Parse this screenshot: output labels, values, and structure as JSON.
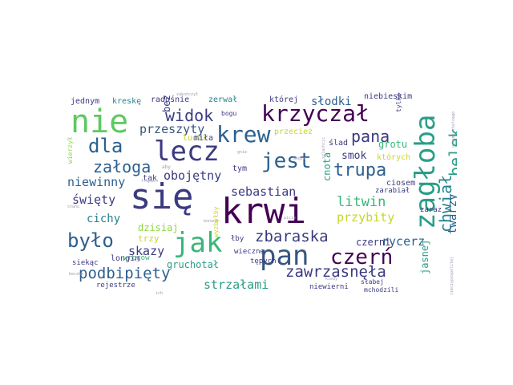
{
  "palette": {
    "dark_purple": "#440154",
    "indigo": "#3b3a81",
    "blue": "#2d5f8e",
    "slate": "#35567f",
    "teal": "#25838e",
    "sea_green": "#2a9e88",
    "green": "#38b77a",
    "light_green": "#5ec962",
    "lime": "#8fd744",
    "yellow": "#c8d62a",
    "gray": "#9c9cb3"
  },
  "words": [
    {
      "text": "się",
      "size": 44,
      "color": "#3b3a81"
    },
    {
      "text": "krwi",
      "size": 44,
      "color": "#440154"
    },
    {
      "text": "nie",
      "size": 40,
      "color": "#5ec962"
    },
    {
      "text": "lecz",
      "size": 34,
      "color": "#3b3a81"
    },
    {
      "text": "jak",
      "size": 34,
      "color": "#38b77a"
    },
    {
      "text": "zagłoba",
      "size": 34,
      "color": "#2a9e88"
    },
    {
      "text": "pan",
      "size": 34,
      "color": "#35567f"
    },
    {
      "text": "krzyczał",
      "size": 28,
      "color": "#440154"
    },
    {
      "text": "krew",
      "size": 28,
      "color": "#2d5f8e"
    },
    {
      "text": "czerń",
      "size": 26,
      "color": "#440154"
    },
    {
      "text": "jest",
      "size": 26,
      "color": "#2d5f8e"
    },
    {
      "text": "dla",
      "size": 24,
      "color": "#2d5f8e"
    },
    {
      "text": "było",
      "size": 24,
      "color": "#2d5f8e"
    },
    {
      "text": "trupa",
      "size": 22,
      "color": "#2d5f8e"
    },
    {
      "text": "pana",
      "size": 20,
      "color": "#3b3a81"
    },
    {
      "text": "widok",
      "size": 20,
      "color": "#3b3a81"
    },
    {
      "text": "załoga",
      "size": 20,
      "color": "#2d5f8e"
    },
    {
      "text": "chwiał",
      "size": 20,
      "color": "#25838e"
    },
    {
      "text": "belek",
      "size": 20,
      "color": "#2a9e88"
    },
    {
      "text": "zbaraska",
      "size": 19,
      "color": "#3b3a81"
    },
    {
      "text": "zawrzasnęła",
      "size": 19,
      "color": "#3b3a81"
    },
    {
      "text": "podbipięty",
      "size": 19,
      "color": "#2d5f8e"
    },
    {
      "text": "litwin",
      "size": 17,
      "color": "#38b77a"
    },
    {
      "text": "przeszyty",
      "size": 15,
      "color": "#35567f"
    },
    {
      "text": "sebastian",
      "size": 15,
      "color": "#3b3a81"
    },
    {
      "text": "przybity",
      "size": 15,
      "color": "#c8d62a"
    },
    {
      "text": "rycerz",
      "size": 15,
      "color": "#2d5f8e"
    },
    {
      "text": "święty",
      "size": 15,
      "color": "#3b3a81"
    },
    {
      "text": "niewinny",
      "size": 15,
      "color": "#2d5f8e"
    },
    {
      "text": "obojętny",
      "size": 15,
      "color": "#3b3a81"
    },
    {
      "text": "strzałami",
      "size": 15,
      "color": "#2a9e88"
    },
    {
      "text": "skazy",
      "size": 15,
      "color": "#3b3a81"
    },
    {
      "text": "cichy",
      "size": 14,
      "color": "#25838e"
    },
    {
      "text": "słodki",
      "size": 14,
      "color": "#2d5f8e"
    },
    {
      "text": "twarzy",
      "size": 14,
      "color": "#2d5f8e"
    },
    {
      "text": "smok",
      "size": 13,
      "color": "#3b3a81"
    },
    {
      "text": "cnota",
      "size": 12,
      "color": "#2a9e88"
    },
    {
      "text": "grotu",
      "size": 12,
      "color": "#38b77a"
    },
    {
      "text": "dzisiaj",
      "size": 12,
      "color": "#8fd744"
    },
    {
      "text": "czerni",
      "size": 12,
      "color": "#3b3a81"
    },
    {
      "text": "gruchotał",
      "size": 12,
      "color": "#2a9e88"
    },
    {
      "text": "jasnej",
      "size": 12,
      "color": "#2a9e88"
    },
    {
      "text": "bez",
      "size": 12,
      "color": "#3b3a81"
    },
    {
      "text": "trzy",
      "size": 11,
      "color": "#c8d62a"
    },
    {
      "text": "longin",
      "size": 10,
      "color": "#3b3a81"
    },
    {
      "text": "ciosem",
      "size": 10,
      "color": "#3b3a81"
    },
    {
      "text": "niebieskim",
      "size": 10,
      "color": "#3b3a81"
    },
    {
      "text": "których",
      "size": 10,
      "color": "#c8d62a"
    },
    {
      "text": "zarabiał",
      "size": 9,
      "color": "#3b3a81"
    },
    {
      "text": "zaraz",
      "size": 9,
      "color": "#3b3a81"
    },
    {
      "text": "radośnie",
      "size": 10,
      "color": "#3b3a81"
    },
    {
      "text": "kreskę",
      "size": 10,
      "color": "#25838e"
    },
    {
      "text": "jednym",
      "size": 10,
      "color": "#3b3a81"
    },
    {
      "text": "zerwał",
      "size": 10,
      "color": "#25838e"
    },
    {
      "text": "której",
      "size": 10,
      "color": "#3b3a81"
    },
    {
      "text": "ludzi",
      "size": 10,
      "color": "#c8d62a"
    },
    {
      "text": "miła",
      "size": 10,
      "color": "#3b3a81"
    },
    {
      "text": "ślad",
      "size": 10,
      "color": "#3b3a81"
    },
    {
      "text": "przecież",
      "size": 10,
      "color": "#c8d62a"
    },
    {
      "text": "tak",
      "size": 10,
      "color": "#3b3a81"
    },
    {
      "text": "tym",
      "size": 10,
      "color": "#3b3a81"
    },
    {
      "text": "tępych",
      "size": 9,
      "color": "#3b3a81"
    },
    {
      "text": "wrogów",
      "size": 9,
      "color": "#38b77a"
    },
    {
      "text": "siekąc",
      "size": 9,
      "color": "#3b3a81"
    },
    {
      "text": "wieczne",
      "size": 9,
      "color": "#3b3a81"
    },
    {
      "text": "łby",
      "size": 9,
      "color": "#3b3a81"
    },
    {
      "text": "rejestrze",
      "size": 9,
      "color": "#3b3a81"
    },
    {
      "text": "niewierni",
      "size": 9,
      "color": "#3b3a81"
    },
    {
      "text": "słabej",
      "size": 8,
      "color": "#3b3a81"
    },
    {
      "text": "mchodzili",
      "size": 8,
      "color": "#3b3a81"
    },
    {
      "text": "bogu",
      "size": 8,
      "color": "#3b3a81"
    },
    {
      "text": "tylko",
      "size": 8,
      "color": "#3b3a81"
    },
    {
      "text": "wierzył",
      "size": 8,
      "color": "#8fd744"
    },
    {
      "text": "wyzbyłby",
      "size": 8,
      "color": "#c8d62a"
    },
    {
      "text": "aby",
      "size": 6,
      "color": "#9c9cb3"
    },
    {
      "text": "trupach",
      "size": 5,
      "color": "#9c9cb3"
    },
    {
      "text": "stanu",
      "size": 5,
      "color": "#9c9cb3"
    },
    {
      "text": "beczka",
      "size": 5,
      "color": "#9c9cb3"
    },
    {
      "text": "ich",
      "size": 5,
      "color": "#9c9cb3"
    },
    {
      "text": "kiedy",
      "size": 5,
      "color": "#9c9cb3"
    },
    {
      "text": "gnie",
      "size": 5,
      "color": "#9c9cb3"
    },
    {
      "text": "picie",
      "size": 5,
      "color": "#9c9cb3"
    },
    {
      "text": "bonuna",
      "size": 5,
      "color": "#9c9cb3"
    },
    {
      "text": "mogła",
      "size": 5,
      "color": "#9c9cb3"
    },
    {
      "text": "rzeczypospolitej",
      "size": 5,
      "color": "#9c9cb3"
    },
    {
      "text": "nieśmiertelnego",
      "size": 5,
      "color": "#9c9cb3"
    },
    {
      "text": "szlachcic",
      "size": 5,
      "color": "#9c9cb3"
    },
    {
      "text": "zakończył",
      "size": 5,
      "color": "#9c9cb3"
    }
  ]
}
